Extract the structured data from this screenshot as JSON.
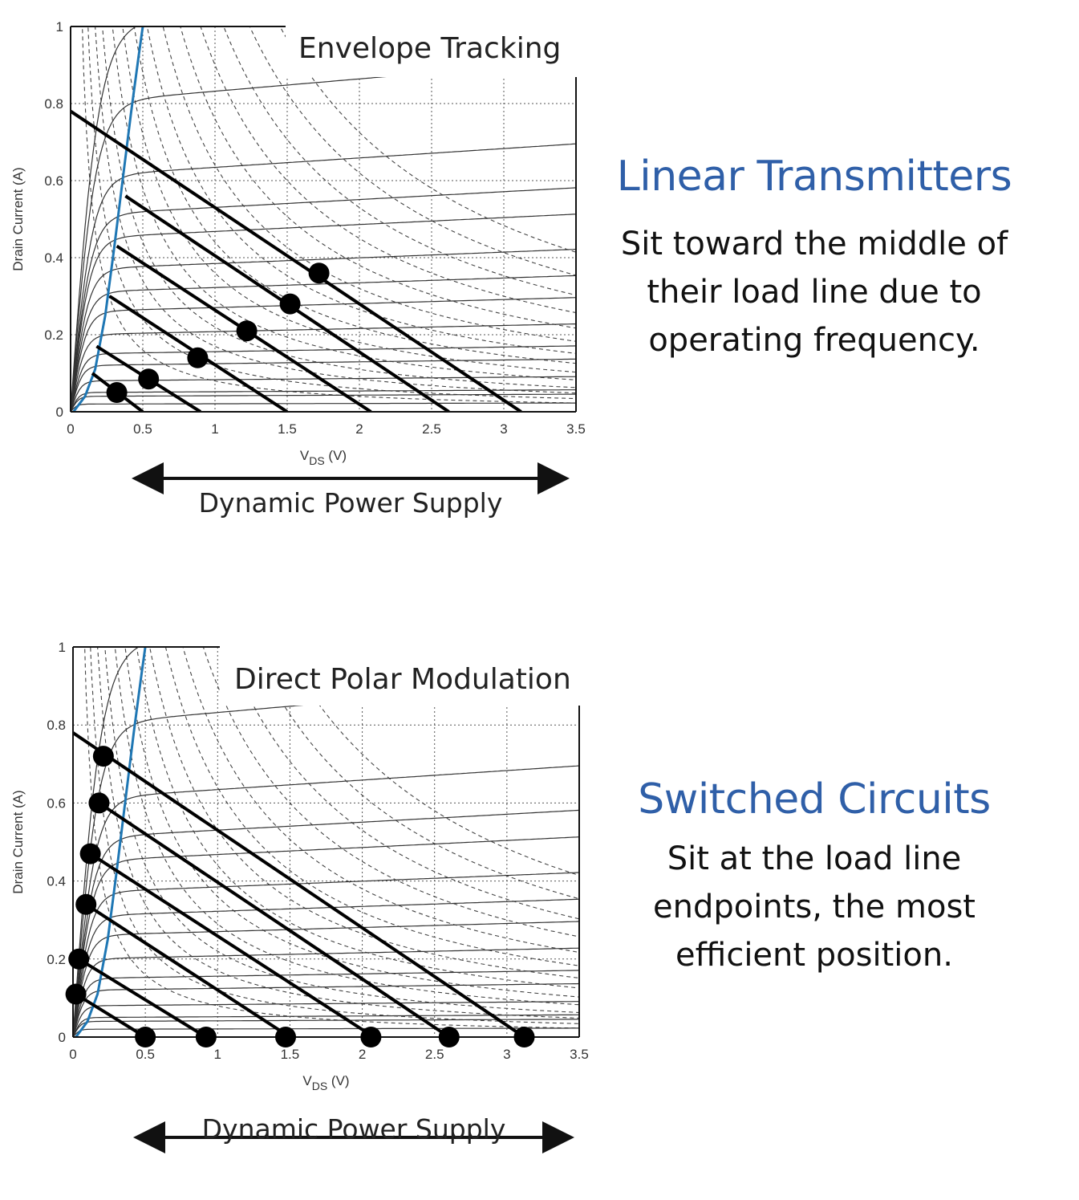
{
  "chart_data": [
    {
      "type": "line",
      "title": "Envelope Tracking",
      "xlabel": "V",
      "xlabel_sub": "DS",
      "xlabel_unit": "(V)",
      "ylabel": "Drain Current (A)",
      "xlim": [
        0,
        3.5
      ],
      "ylim": [
        0,
        1
      ],
      "x_ticks": [
        "0",
        "0.5",
        "1",
        "1.5",
        "2",
        "2.5",
        "3",
        "3.5"
      ],
      "y_ticks": [
        "0",
        "0.2",
        "0.4",
        "0.6",
        "0.8",
        "1"
      ],
      "grid": true,
      "supply_label": "Dynamic Power Supply",
      "series": [
        {
          "values": [
            [
              0.2,
              0.17
            ],
            [
              0.65,
              0.0
            ]
          ]
        },
        {
          "values": [
            [
              0.6,
              0.0
            ],
            [
              0.85,
              0.0
            ]
          ]
        },
        {
          "values": [
            [
              1.4,
              0.0
            ],
            [
              1.6,
              0.0
            ]
          ]
        },
        {
          "values": [
            [
              0.0,
              0.78
            ],
            [
              2.1,
              0.0
            ]
          ]
        },
        {
          "values": [
            [
              0.4,
              0.56
            ],
            [
              2.65,
              0.0
            ]
          ]
        },
        {
          "values": [
            [
              0.3,
              0.44
            ],
            [
              3.12,
              0.0
            ]
          ]
        }
      ],
      "load_lines": [
        {
          "x0": 0.15,
          "y0": 0.1,
          "x1": 0.5,
          "y1": 0.0
        },
        {
          "x0": 0.18,
          "y0": 0.17,
          "x1": 0.9,
          "y1": 0.0
        },
        {
          "x0": 0.27,
          "y0": 0.3,
          "x1": 1.5,
          "y1": 0.0
        },
        {
          "x0": 0.32,
          "y0": 0.43,
          "x1": 2.08,
          "y1": 0.0
        },
        {
          "x0": 0.38,
          "y0": 0.56,
          "x1": 2.62,
          "y1": 0.0
        },
        {
          "x0": 0.0,
          "y0": 0.78,
          "x1": 3.12,
          "y1": 0.0
        }
      ],
      "operating_points": [
        {
          "x": 0.32,
          "y": 0.05
        },
        {
          "x": 0.54,
          "y": 0.085
        },
        {
          "x": 0.88,
          "y": 0.14
        },
        {
          "x": 1.22,
          "y": 0.21
        },
        {
          "x": 1.52,
          "y": 0.28
        },
        {
          "x": 1.72,
          "y": 0.36
        }
      ],
      "knee_curve": [
        [
          0.02,
          0.0
        ],
        [
          0.1,
          0.04
        ],
        [
          0.17,
          0.11
        ],
        [
          0.24,
          0.25
        ],
        [
          0.3,
          0.42
        ],
        [
          0.36,
          0.6
        ],
        [
          0.42,
          0.78
        ],
        [
          0.47,
          0.92
        ],
        [
          0.5,
          1.0
        ]
      ],
      "iv_currents": [
        0.02,
        0.04,
        0.05,
        0.08,
        0.12,
        0.15,
        0.2,
        0.26,
        0.31,
        0.37,
        0.45,
        0.51,
        0.61,
        0.8,
        1.0
      ],
      "hyperbola_k": [
        0.08,
        0.12,
        0.17,
        0.22,
        0.29,
        0.36,
        0.44,
        0.53,
        0.64,
        0.76,
        0.9,
        1.06,
        1.24,
        1.45
      ]
    },
    {
      "type": "line",
      "title": "Direct Polar Modulation",
      "xlabel": "V",
      "xlabel_sub": "DS",
      "xlabel_unit": "(V)",
      "ylabel": "Drain Current (A)",
      "xlim": [
        0,
        3.5
      ],
      "ylim": [
        0,
        1
      ],
      "x_ticks": [
        "0",
        "0.5",
        "1",
        "1.5",
        "2",
        "2.5",
        "3",
        "3.5"
      ],
      "y_ticks": [
        "0",
        "0.2",
        "0.4",
        "0.6",
        "0.8",
        "1"
      ],
      "grid": true,
      "supply_label": "Dynamic Power Supply",
      "load_lines": [
        {
          "x0": 0.02,
          "y0": 0.11,
          "x1": 0.5,
          "y1": 0.0
        },
        {
          "x0": 0.04,
          "y0": 0.2,
          "x1": 0.92,
          "y1": 0.0
        },
        {
          "x0": 0.09,
          "y0": 0.34,
          "x1": 1.5,
          "y1": 0.0
        },
        {
          "x0": 0.12,
          "y0": 0.47,
          "x1": 2.08,
          "y1": 0.0
        },
        {
          "x0": 0.18,
          "y0": 0.6,
          "x1": 2.6,
          "y1": 0.0
        },
        {
          "x0": 0.0,
          "y0": 0.78,
          "x1": 3.12,
          "y1": 0.0
        }
      ],
      "operating_points": [
        {
          "x": 0.02,
          "y": 0.11
        },
        {
          "x": 0.04,
          "y": 0.2
        },
        {
          "x": 0.09,
          "y": 0.34
        },
        {
          "x": 0.12,
          "y": 0.47
        },
        {
          "x": 0.18,
          "y": 0.6
        },
        {
          "x": 0.21,
          "y": 0.72
        },
        {
          "x": 0.5,
          "y": 0.0
        },
        {
          "x": 0.92,
          "y": 0.0
        },
        {
          "x": 1.47,
          "y": 0.0
        },
        {
          "x": 2.06,
          "y": 0.0
        },
        {
          "x": 2.6,
          "y": 0.0
        },
        {
          "x": 3.12,
          "y": 0.0
        }
      ],
      "knee_curve": [
        [
          0.02,
          0.0
        ],
        [
          0.1,
          0.04
        ],
        [
          0.17,
          0.11
        ],
        [
          0.24,
          0.25
        ],
        [
          0.3,
          0.42
        ],
        [
          0.36,
          0.6
        ],
        [
          0.42,
          0.78
        ],
        [
          0.47,
          0.92
        ],
        [
          0.5,
          1.0
        ]
      ],
      "iv_currents": [
        0.02,
        0.04,
        0.05,
        0.08,
        0.12,
        0.15,
        0.2,
        0.26,
        0.31,
        0.37,
        0.45,
        0.51,
        0.61,
        0.8,
        1.0
      ],
      "hyperbola_k": [
        0.08,
        0.12,
        0.17,
        0.22,
        0.29,
        0.36,
        0.44,
        0.53,
        0.64,
        0.76,
        0.9,
        1.06,
        1.24,
        1.45
      ]
    }
  ],
  "colors": {
    "knee_curve": "#1f77b4",
    "heading": "#2f5fa8",
    "ink": "#111111"
  },
  "side_top": {
    "heading": "Linear Transmitters",
    "body": "Sit toward the middle of their load line due to operating frequency."
  },
  "side_bottom": {
    "heading": "Switched Circuits",
    "body": "Sit at the load line endpoints, the most efficient position."
  }
}
